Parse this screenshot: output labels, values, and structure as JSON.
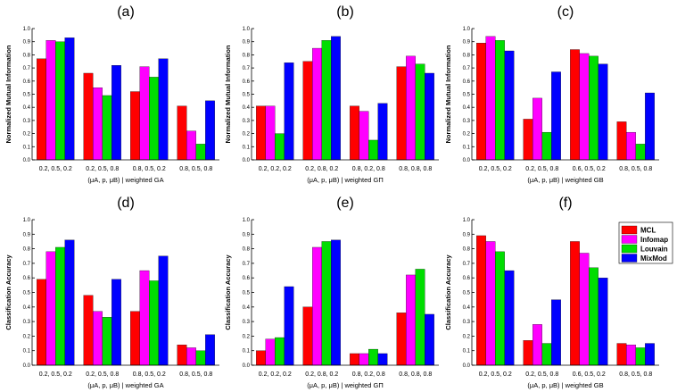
{
  "legend": {
    "entries": [
      {
        "name": "MCL",
        "color": "#ff0000"
      },
      {
        "name": "Infomap",
        "color": "#ff00ff"
      },
      {
        "name": "Louvain",
        "color": "#00dd00"
      },
      {
        "name": "MixMod",
        "color": "#0000ff"
      }
    ]
  },
  "chart_data": [
    {
      "type": "bar",
      "title": "(a)",
      "ylabel": "Normalized Mutual Information",
      "xlabel": "(μA, p, μB) | weighted GA",
      "ylim": [
        0,
        1.0
      ],
      "yticks": [
        "0.0",
        "0.1",
        "0.2",
        "0.3",
        "0.4",
        "0.5",
        "0.6",
        "0.7",
        "0.8",
        "0.9",
        "1.0"
      ],
      "categories": [
        "0.2, 0.5, 0.2",
        "0.2, 0.5, 0.8",
        "0.8, 0.5, 0.2",
        "0.8, 0.5, 0.8"
      ],
      "series": [
        {
          "name": "MCL",
          "values": [
            0.77,
            0.66,
            0.52,
            0.41
          ]
        },
        {
          "name": "Infomap",
          "values": [
            0.91,
            0.55,
            0.71,
            0.22
          ]
        },
        {
          "name": "Louvain",
          "values": [
            0.9,
            0.49,
            0.63,
            0.12
          ]
        },
        {
          "name": "MixMod",
          "values": [
            0.93,
            0.72,
            0.77,
            0.45
          ]
        }
      ]
    },
    {
      "type": "bar",
      "title": "(b)",
      "ylabel": "Normalized Mutual Information",
      "xlabel": "(μA, p, μB) | weighted GΠ",
      "ylim": [
        0,
        1.0
      ],
      "yticks": [
        "0.0",
        "0.1",
        "0.2",
        "0.3",
        "0.4",
        "0.5",
        "0.6",
        "0.7",
        "0.8",
        "0.9",
        "1.0"
      ],
      "categories": [
        "0.2, 0.2, 0.2",
        "0.2, 0.8, 0.2",
        "0.8, 0.2, 0.8",
        "0.8, 0.8, 0.8"
      ],
      "series": [
        {
          "name": "MCL",
          "values": [
            0.41,
            0.75,
            0.41,
            0.71
          ]
        },
        {
          "name": "Infomap",
          "values": [
            0.41,
            0.85,
            0.37,
            0.79
          ]
        },
        {
          "name": "Louvain",
          "values": [
            0.2,
            0.91,
            0.15,
            0.73
          ]
        },
        {
          "name": "MixMod",
          "values": [
            0.74,
            0.94,
            0.43,
            0.66
          ]
        }
      ]
    },
    {
      "type": "bar",
      "title": "(c)",
      "ylabel": "Normalized Mutual Information",
      "xlabel": "(μA, p, μB) | weighted GB",
      "ylim": [
        0,
        1.0
      ],
      "yticks": [
        "0.0",
        "0.1",
        "0.2",
        "0.3",
        "0.4",
        "0.5",
        "0.6",
        "0.7",
        "0.8",
        "0.9",
        "1.0"
      ],
      "categories": [
        "0.2, 0.5, 0.2",
        "0.2, 0.5, 0.8",
        "0.6, 0.5, 0.2",
        "0.8, 0.5, 0.8"
      ],
      "series": [
        {
          "name": "MCL",
          "values": [
            0.89,
            0.31,
            0.84,
            0.29
          ]
        },
        {
          "name": "Infomap",
          "values": [
            0.94,
            0.47,
            0.81,
            0.21
          ]
        },
        {
          "name": "Louvain",
          "values": [
            0.91,
            0.21,
            0.79,
            0.12
          ]
        },
        {
          "name": "MixMod",
          "values": [
            0.83,
            0.67,
            0.73,
            0.51
          ]
        }
      ]
    },
    {
      "type": "bar",
      "title": "(d)",
      "ylabel": "Classification Accuracy",
      "xlabel": "(μA, p, μB) | weighted GA",
      "ylim": [
        0,
        1.0
      ],
      "yticks": [
        "0.0",
        "0.1",
        "0.2",
        "0.3",
        "0.4",
        "0.5",
        "0.6",
        "0.7",
        "0.8",
        "0.9",
        "1.0"
      ],
      "categories": [
        "0.2, 0.5, 0.2",
        "0.2, 0.5, 0.8",
        "0.8, 0.5, 0.2",
        "0.8, 0.5, 0.8"
      ],
      "series": [
        {
          "name": "MCL",
          "values": [
            0.59,
            0.48,
            0.37,
            0.14
          ]
        },
        {
          "name": "Infomap",
          "values": [
            0.78,
            0.37,
            0.65,
            0.12
          ]
        },
        {
          "name": "Louvain",
          "values": [
            0.81,
            0.33,
            0.58,
            0.1
          ]
        },
        {
          "name": "MixMod",
          "values": [
            0.86,
            0.59,
            0.75,
            0.21
          ]
        }
      ]
    },
    {
      "type": "bar",
      "title": "(e)",
      "ylabel": "Classification Accuracy",
      "xlabel": "(μA, p, μB) | weighted GΠ",
      "ylim": [
        0,
        1.0
      ],
      "yticks": [
        "0.0",
        "0.1",
        "0.2",
        "0.3",
        "0.4",
        "0.5",
        "0.6",
        "0.7",
        "0.8",
        "0.9",
        "1.0"
      ],
      "categories": [
        "0.2, 0.2, 0.2",
        "0.2, 0.8, 0.2",
        "0.8, 0.2, 0.8",
        "0.8, 0.8, 0.8"
      ],
      "series": [
        {
          "name": "MCL",
          "values": [
            0.1,
            0.4,
            0.08,
            0.36
          ]
        },
        {
          "name": "Infomap",
          "values": [
            0.18,
            0.81,
            0.08,
            0.62
          ]
        },
        {
          "name": "Louvain",
          "values": [
            0.19,
            0.85,
            0.11,
            0.66
          ]
        },
        {
          "name": "MixMod",
          "values": [
            0.54,
            0.86,
            0.08,
            0.35
          ]
        }
      ]
    },
    {
      "type": "bar",
      "title": "(f)",
      "ylabel": "Classification Accuracy",
      "xlabel": "(μA, p, μB) | weighted GB",
      "ylim": [
        0,
        1.0
      ],
      "yticks": [
        "0.0",
        "0.1",
        "0.2",
        "0.3",
        "0.4",
        "0.5",
        "0.6",
        "0.7",
        "0.8",
        "0.9",
        "1.0"
      ],
      "categories": [
        "0.2, 0.5, 0.2",
        "0.2, 0.5, 0.8",
        "0.6, 0.5, 0.2",
        "0.8, 0.5, 0.8"
      ],
      "series": [
        {
          "name": "MCL",
          "values": [
            0.89,
            0.17,
            0.85,
            0.15
          ]
        },
        {
          "name": "Infomap",
          "values": [
            0.85,
            0.28,
            0.77,
            0.14
          ]
        },
        {
          "name": "Louvain",
          "values": [
            0.78,
            0.15,
            0.67,
            0.12
          ]
        },
        {
          "name": "MixMod",
          "values": [
            0.65,
            0.45,
            0.6,
            0.15
          ]
        }
      ]
    }
  ]
}
